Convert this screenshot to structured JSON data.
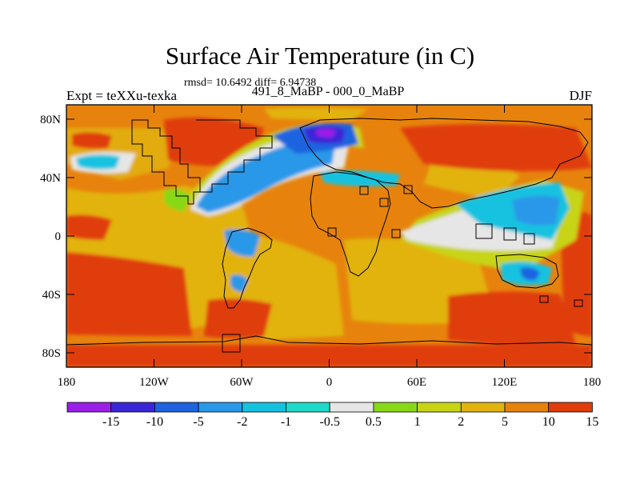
{
  "figure": {
    "title": "Surface Air Temperature (in C)",
    "stats_line": "rmsd= 10.6492 diff= 6.94738",
    "left_label": "Expt = teXXu-texka",
    "center_label": "491_8_MaBP - 000_0_MaBP",
    "right_label": "DJF"
  },
  "axes": {
    "lat_ticks": [
      "80N",
      "40N",
      "0",
      "40S",
      "80S"
    ],
    "lon_ticks": [
      "180",
      "120W",
      "60W",
      "0",
      "60E",
      "120E",
      "180"
    ]
  },
  "colorbar": {
    "colors": [
      "#9b1fe8",
      "#3a26d6",
      "#1f63e0",
      "#2a98e8",
      "#14c2e0",
      "#1ed8c8",
      "#e6e6e6",
      "#88d818",
      "#c8d416",
      "#e2b30e",
      "#e7820c",
      "#e03c0a"
    ],
    "labels": [
      "-15",
      "-10",
      "-5",
      "-2",
      "-1",
      "-0.5",
      "0.5",
      "1",
      "2",
      "5",
      "10",
      "15"
    ]
  },
  "colors": {
    "warm_base": "#e7830d",
    "hot": "#e03c0a",
    "mild": "#e2b30e"
  }
}
